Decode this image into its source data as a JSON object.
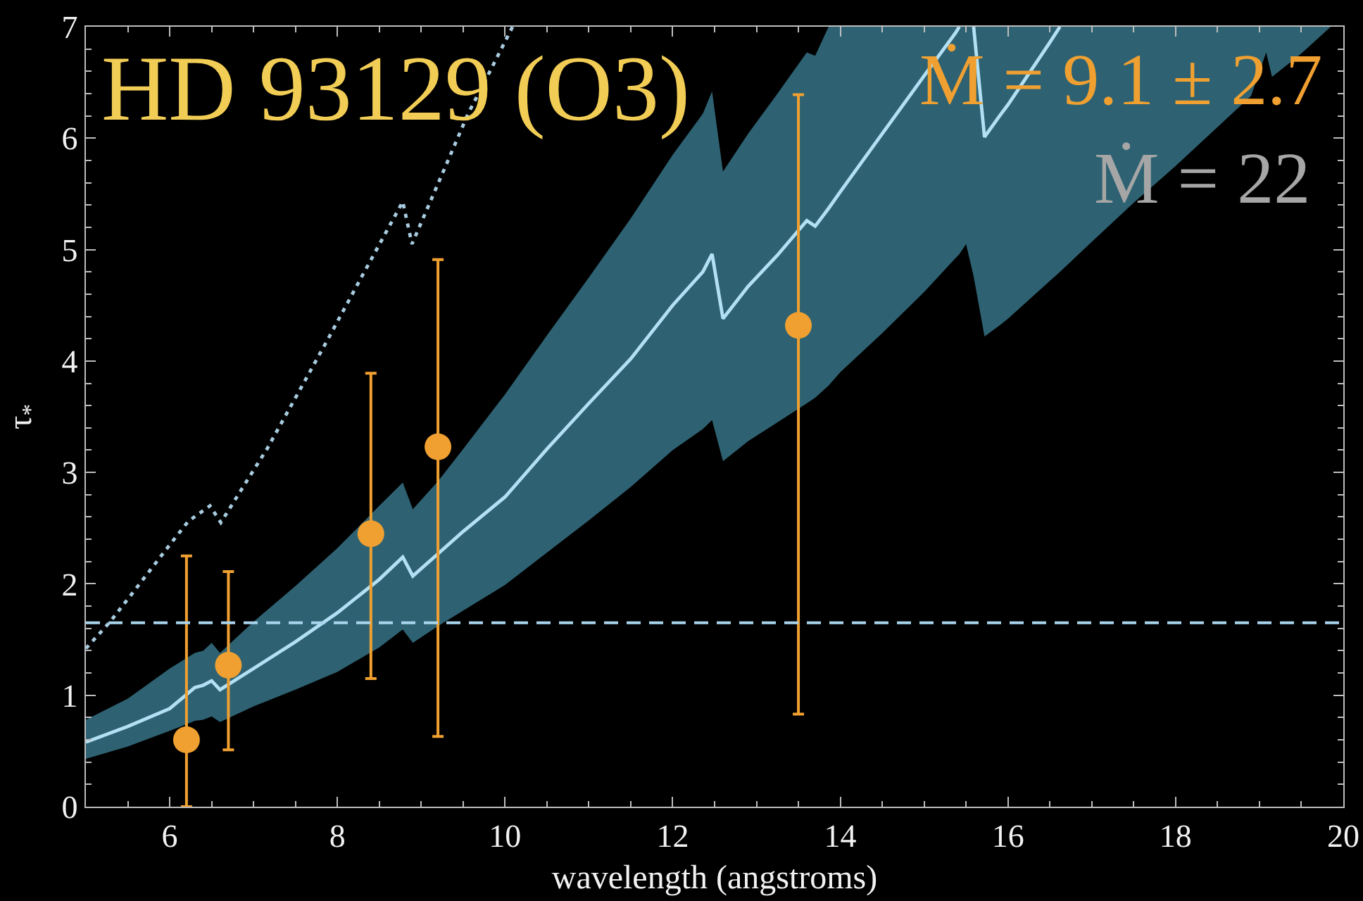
{
  "chart_data": {
    "type": "line",
    "title": "HD 93129 (O3)",
    "xlabel": "wavelength (angstroms)",
    "ylabel": "τ$_{*}$",
    "xlim": [
      5,
      20
    ],
    "ylim": [
      0,
      7
    ],
    "xticks": [
      {
        "value": 5.5,
        "label": null
      },
      6,
      {
        "value": 6.5,
        "label": null
      },
      {
        "value": 7,
        "label": null
      },
      {
        "value": 7.5,
        "label": null
      },
      8,
      {
        "value": 8.5,
        "label": null
      },
      {
        "value": 9,
        "label": null
      },
      {
        "value": 9.5,
        "label": null
      },
      10,
      {
        "value": 10.5,
        "label": null
      },
      {
        "value": 11,
        "label": null
      },
      {
        "value": 11.5,
        "label": null
      },
      12,
      {
        "value": 12.5,
        "label": null
      },
      {
        "value": 13,
        "label": null
      },
      {
        "value": 13.5,
        "label": null
      },
      14,
      {
        "value": 14.5,
        "label": null
      },
      {
        "value": 15,
        "label": null
      },
      {
        "value": 15.5,
        "label": null
      },
      16,
      {
        "value": 16.5,
        "label": null
      },
      {
        "value": 17,
        "label": null
      },
      {
        "value": 17.5,
        "label": null
      },
      18,
      {
        "value": 18.5,
        "label": null
      },
      {
        "value": 19,
        "label": null
      },
      {
        "value": 19.5,
        "label": null
      },
      20
    ],
    "yticks": [
      0,
      {
        "value": 0.2,
        "label": null
      },
      {
        "value": 0.4,
        "label": null
      },
      {
        "value": 0.6,
        "label": null
      },
      {
        "value": 0.8,
        "label": null
      },
      1,
      {
        "value": 1.2,
        "label": null
      },
      {
        "value": 1.4,
        "label": null
      },
      {
        "value": 1.6,
        "label": null
      },
      {
        "value": 1.8,
        "label": null
      },
      2,
      {
        "value": 2.2,
        "label": null
      },
      {
        "value": 2.4,
        "label": null
      },
      {
        "value": 2.6,
        "label": null
      },
      {
        "value": 2.8,
        "label": null
      },
      3,
      {
        "value": 3.2,
        "label": null
      },
      {
        "value": 3.4,
        "label": null
      },
      {
        "value": 3.6,
        "label": null
      },
      {
        "value": 3.8,
        "label": null
      },
      4,
      {
        "value": 4.2,
        "label": null
      },
      {
        "value": 4.4,
        "label": null
      },
      {
        "value": 4.6,
        "label": null
      },
      {
        "value": 4.8,
        "label": null
      },
      5,
      {
        "value": 5.2,
        "label": null
      },
      {
        "value": 5.4,
        "label": null
      },
      {
        "value": 5.6,
        "label": null
      },
      {
        "value": 5.8,
        "label": null
      },
      6,
      {
        "value": 6.2,
        "label": null
      },
      {
        "value": 6.4,
        "label": null
      },
      {
        "value": 6.6,
        "label": null
      },
      {
        "value": 6.8,
        "label": null
      },
      7
    ],
    "series": [
      {
        "color": "#b4e0f4",
        "line_style": "solid",
        "x": [
          5.0,
          5.5,
          6.0,
          6.3,
          6.4,
          6.5,
          6.6,
          7.0,
          7.5,
          8.0,
          8.5,
          8.78,
          8.9,
          9.2,
          9.5,
          10.0,
          10.5,
          11.0,
          11.5,
          12.0,
          12.36,
          12.47,
          12.6,
          12.9,
          13.25,
          13.6,
          13.7,
          13.86,
          14.0,
          14.5,
          15.0,
          15.37,
          15.42,
          15.5,
          15.59,
          15.72,
          15.9,
          16.0,
          16.5,
          16.62,
          17.0,
          17.5,
          18.0,
          18.5,
          18.9,
          19.08,
          19.15,
          19.5,
          19.85
        ],
        "values": [
          0.58,
          0.72,
          0.88,
          1.07,
          1.09,
          1.13,
          1.05,
          1.24,
          1.48,
          1.74,
          2.04,
          2.24,
          2.07,
          2.27,
          2.47,
          2.78,
          3.21,
          3.62,
          4.02,
          4.5,
          4.8,
          4.96,
          4.38,
          4.67,
          4.95,
          5.26,
          5.21,
          5.37,
          5.52,
          6.04,
          6.56,
          6.94,
          7.0,
          null,
          7.0,
          6.01,
          6.2,
          6.3,
          6.86,
          7.0,
          null,
          null,
          null,
          null,
          null,
          null,
          null,
          null,
          null
        ],
        "upper": [
          0.78,
          0.97,
          1.24,
          1.38,
          1.4,
          1.47,
          1.38,
          1.66,
          1.98,
          2.32,
          2.7,
          2.91,
          2.67,
          2.92,
          3.21,
          3.7,
          4.23,
          4.75,
          5.28,
          5.85,
          6.22,
          6.42,
          5.7,
          6.04,
          6.4,
          6.77,
          6.74,
          7.0,
          7.0,
          7.0,
          7.0,
          7.0,
          7.0,
          7.0,
          7.0,
          7.0,
          7.0,
          7.0,
          7.0,
          7.0,
          7.0,
          7.0,
          7.0,
          7.0,
          7.0,
          7.0,
          7.0,
          7.0,
          7.0
        ],
        "lower": [
          0.43,
          0.54,
          0.68,
          0.77,
          0.78,
          0.81,
          0.76,
          0.9,
          1.05,
          1.21,
          1.43,
          1.59,
          1.47,
          1.62,
          1.76,
          1.99,
          2.28,
          2.57,
          2.87,
          3.2,
          3.39,
          3.47,
          3.1,
          3.28,
          3.45,
          3.62,
          3.67,
          3.78,
          3.9,
          4.25,
          4.62,
          4.92,
          4.96,
          5.05,
          4.76,
          4.22,
          4.32,
          4.38,
          4.72,
          4.8,
          5.07,
          5.42,
          5.75,
          6.1,
          6.38,
          6.77,
          6.55,
          6.76,
          7.0
        ]
      },
      {
        "color": "#a8cce0",
        "line_style": "dotted",
        "x": [
          5.0,
          5.29,
          5.6,
          6.0,
          6.22,
          6.33,
          6.48,
          6.61,
          7.0,
          7.16,
          7.5,
          7.89,
          8.3,
          8.78,
          8.89,
          9.2,
          9.56,
          9.8,
          10.09
        ],
        "values": [
          1.42,
          1.66,
          1.96,
          2.35,
          2.56,
          2.62,
          2.7,
          2.55,
          3.02,
          3.21,
          3.67,
          4.2,
          4.77,
          5.43,
          5.05,
          5.59,
          6.22,
          6.57,
          7.0
        ]
      },
      {
        "type": "scatter",
        "color": "#f0a030",
        "marker": "circle",
        "x": [
          6.2,
          6.7,
          8.4,
          9.2,
          13.5
        ],
        "values": [
          0.6,
          1.27,
          2.45,
          3.23,
          4.32
        ],
        "errors": [
          [
            0,
            2.25
          ],
          [
            0.51,
            2.11
          ],
          [
            1.15,
            3.89
          ],
          [
            0.63,
            4.91
          ],
          [
            0.83,
            6.39
          ]
        ]
      }
    ],
    "ref_lines": [
      {
        "axis": "y",
        "value": 1.65,
        "color": "#a8d4ec",
        "line_style": "dashed"
      }
    ],
    "annotations": [
      "Ṁ = 9.1 ± 2.7",
      "Ṁ = 22"
    ]
  }
}
